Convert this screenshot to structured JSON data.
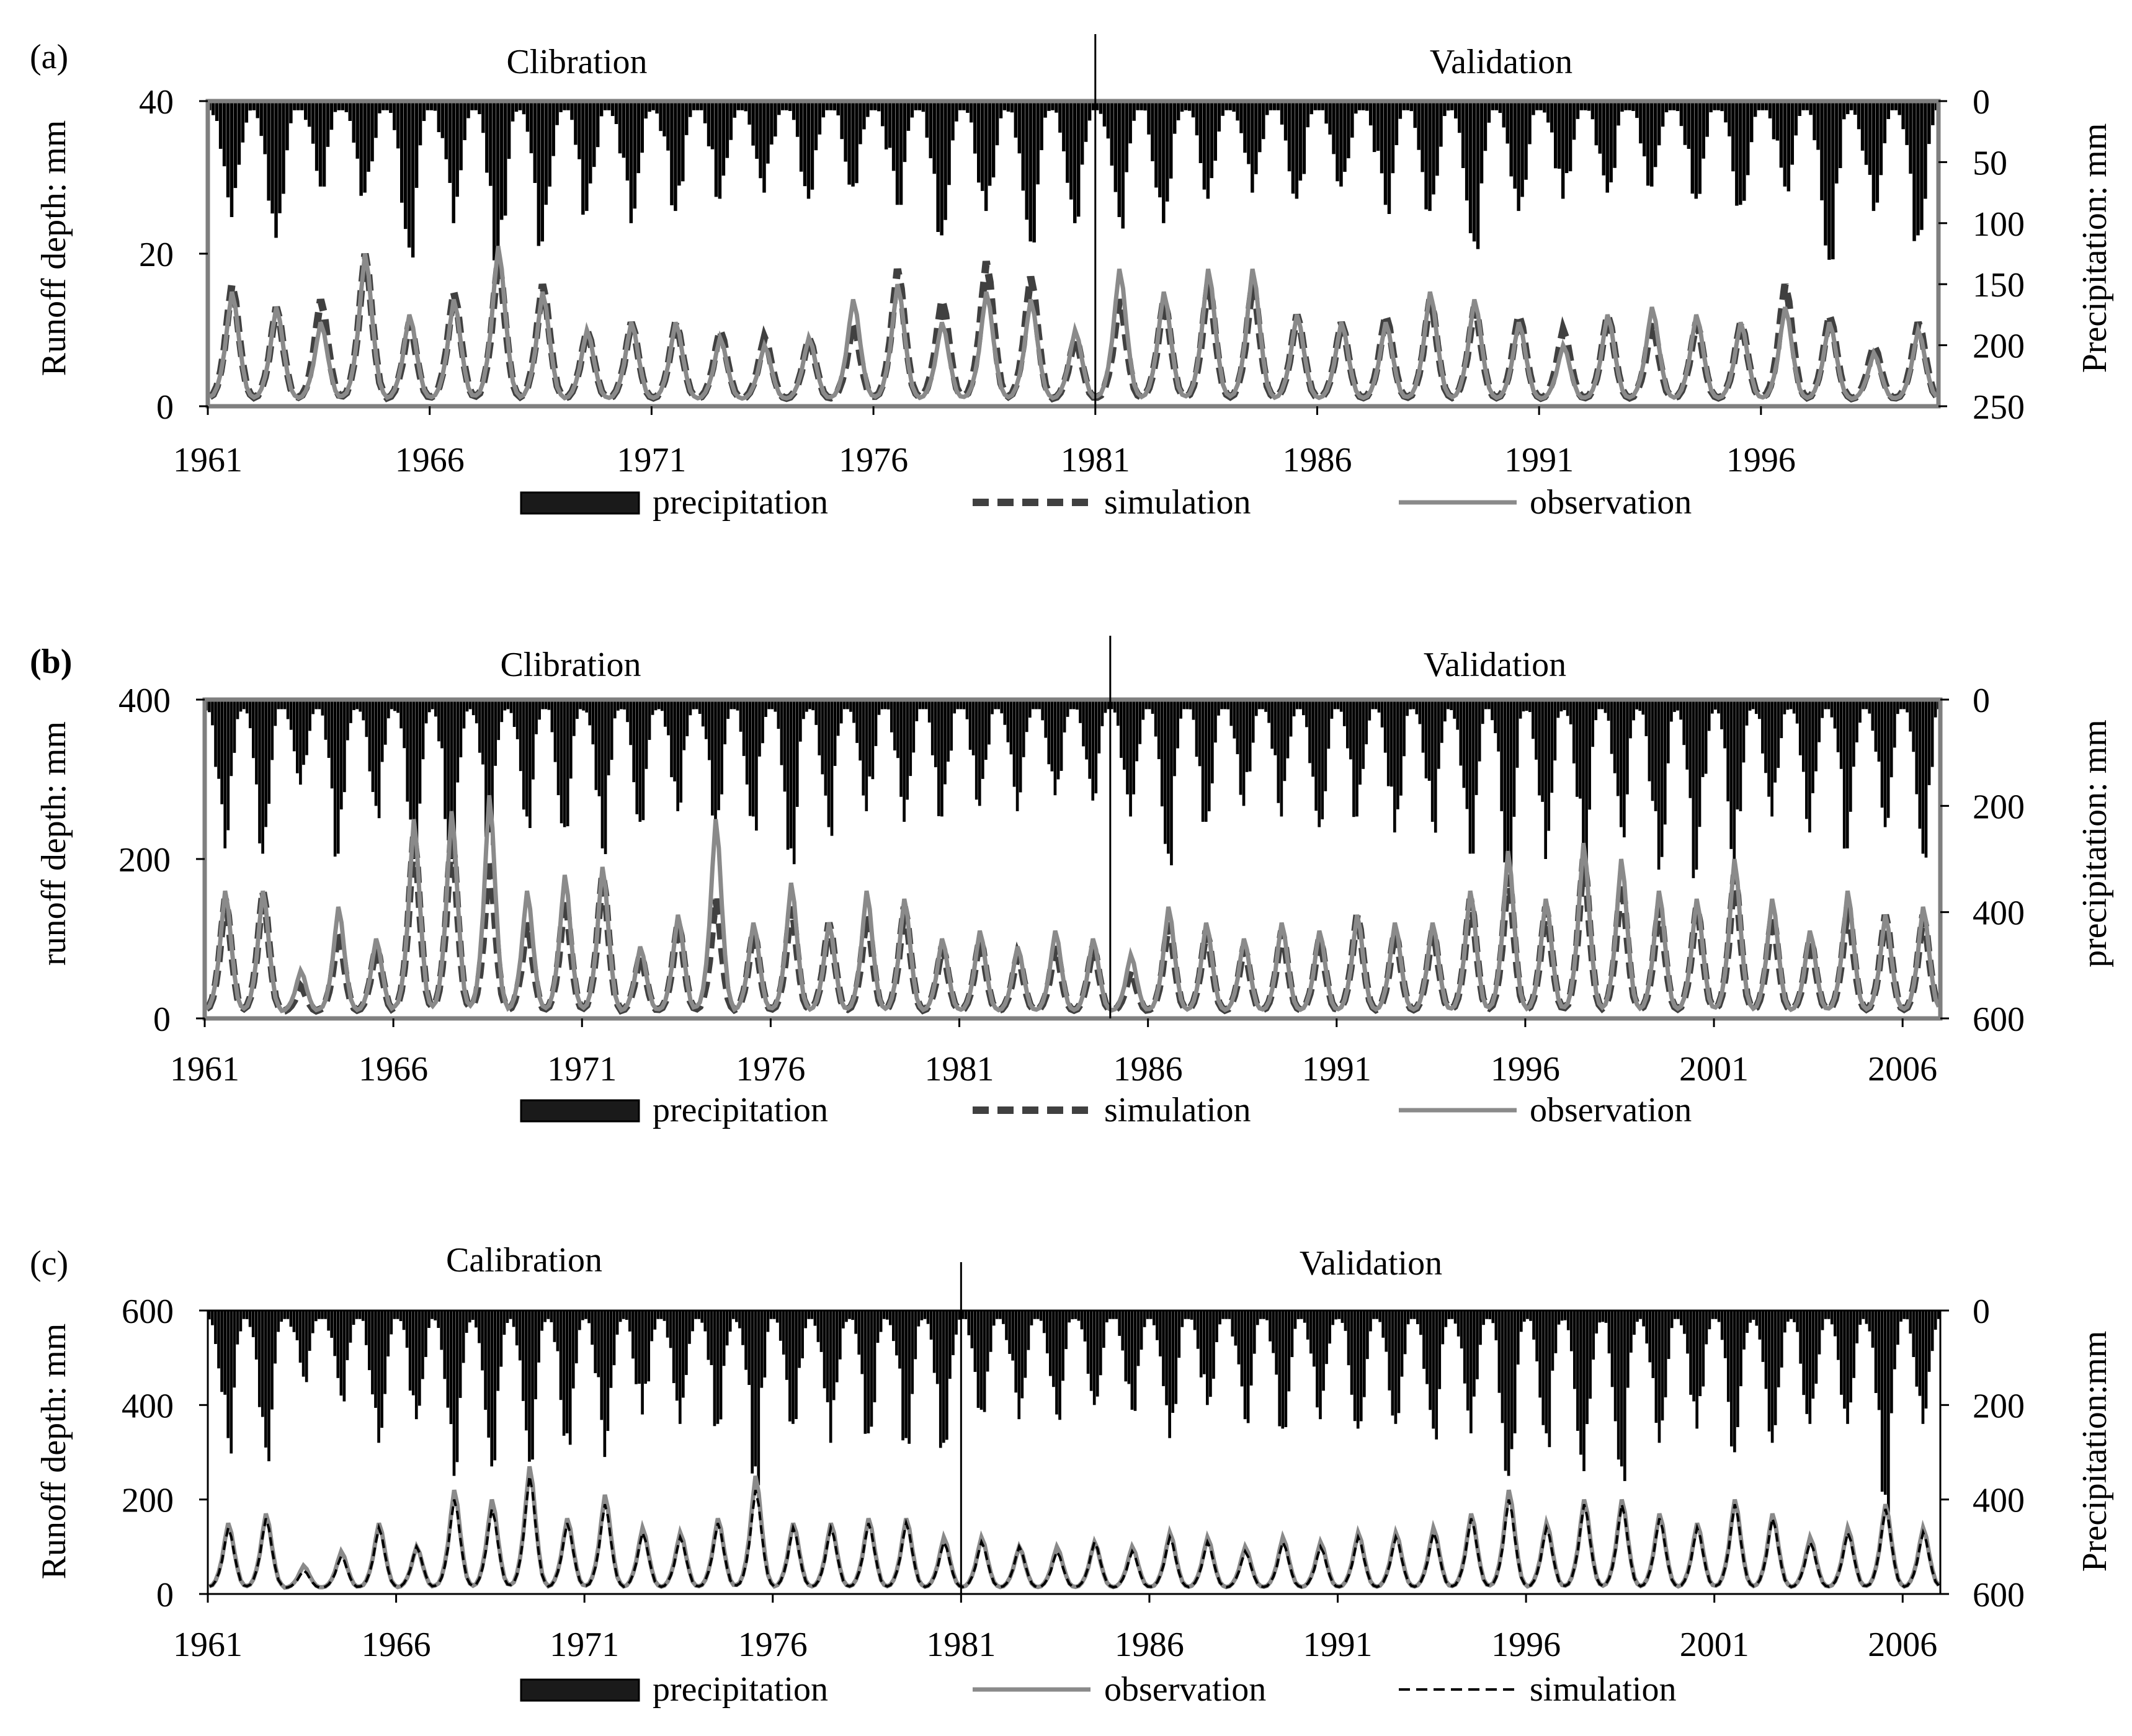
{
  "chart_data": [
    {
      "type": "line",
      "panel_label": "(a)",
      "period_labels": [
        "Clibration",
        "Validation"
      ],
      "split_year": 1981,
      "ylabel": "Runoff depth: mm",
      "y2label": "Precipitation: mm",
      "ylim": [
        0,
        40
      ],
      "y2lim": [
        250,
        0
      ],
      "y_ticks": [
        "0",
        "20",
        "40"
      ],
      "y2_ticks": [
        "0",
        "50",
        "100",
        "150",
        "200",
        "250"
      ],
      "xlim": [
        1961,
        2000
      ],
      "x_ticks": [
        "1961",
        "1966",
        "1971",
        "1976",
        "1981",
        "1986",
        "1991",
        "1996"
      ],
      "legend": [
        "precipitation",
        "simulation",
        "observation"
      ],
      "series": [
        {
          "name": "precipitation",
          "type": "bar",
          "axis": "right",
          "annual_peaks_mm": [
            95,
            112,
            70,
            75,
            120,
            100,
            140,
            115,
            90,
            100,
            90,
            80,
            75,
            80,
            70,
            85,
            110,
            90,
            115,
            100,
            95,
            100,
            80,
            75,
            80,
            70,
            85,
            90,
            115,
            90,
            80,
            75,
            70,
            80,
            85,
            70,
            130,
            90,
            110
          ]
        },
        {
          "name": "simulation",
          "type": "line",
          "annual_peaks": [
            16,
            13,
            14,
            20,
            11,
            15,
            19,
            16,
            10,
            11,
            11,
            10,
            9,
            9,
            11,
            18,
            14,
            19,
            17,
            9,
            14,
            14,
            16,
            16,
            12,
            11,
            12,
            14,
            13,
            12,
            10,
            12,
            11,
            11,
            11,
            16,
            12,
            8,
            11
          ]
        },
        {
          "name": "observation",
          "type": "line",
          "annual_peaks": [
            15,
            13,
            11,
            20,
            12,
            14,
            21,
            15,
            10,
            11,
            11,
            9,
            8,
            9,
            14,
            16,
            11,
            15,
            14,
            10,
            18,
            15,
            18,
            18,
            12,
            11,
            11,
            15,
            14,
            11,
            8,
            12,
            13,
            12,
            11,
            13,
            11,
            7,
            10
          ]
        }
      ]
    },
    {
      "type": "line",
      "panel_label": "(b)",
      "period_labels": [
        "Clibration",
        "Validation"
      ],
      "split_year": 1985,
      "ylabel": "runoff depth: mm",
      "y2label": "precipitation: mm",
      "ylim": [
        0,
        400
      ],
      "y2lim": [
        600,
        0
      ],
      "y_ticks": [
        "0",
        "200",
        "400"
      ],
      "y2_ticks": [
        "0",
        "200",
        "400",
        "600"
      ],
      "xlim": [
        1961,
        2007
      ],
      "x_ticks": [
        "1961",
        "1966",
        "1971",
        "1976",
        "1981",
        "1986",
        "1991",
        "1996",
        "2001",
        "2006"
      ],
      "legend": [
        "precipitation",
        "simulation",
        "observation"
      ],
      "series": [
        {
          "name": "precipitation",
          "type": "bar",
          "axis": "right",
          "annual_peaks_mm": [
            280,
            290,
            160,
            290,
            200,
            300,
            300,
            250,
            220,
            240,
            280,
            230,
            210,
            240,
            220,
            280,
            240,
            210,
            230,
            220,
            200,
            210,
            180,
            190,
            220,
            290,
            230,
            200,
            220,
            240,
            220,
            250,
            230,
            290,
            310,
            300,
            280,
            240,
            320,
            320,
            300,
            220,
            250,
            280,
            240,
            290
          ]
        },
        {
          "name": "simulation",
          "type": "line",
          "annual_peaks": [
            150,
            160,
            40,
            110,
            90,
            230,
            230,
            200,
            120,
            150,
            180,
            80,
            120,
            150,
            110,
            140,
            120,
            130,
            140,
            90,
            100,
            80,
            90,
            90,
            60,
            120,
            110,
            90,
            110,
            100,
            130,
            110,
            110,
            150,
            180,
            140,
            200,
            170,
            140,
            140,
            180,
            130,
            100,
            140,
            130,
            130
          ]
        },
        {
          "name": "observation",
          "type": "line",
          "annual_peaks": [
            160,
            160,
            60,
            140,
            100,
            250,
            260,
            280,
            160,
            180,
            190,
            90,
            130,
            250,
            120,
            170,
            120,
            160,
            150,
            100,
            110,
            90,
            110,
            100,
            80,
            140,
            120,
            100,
            120,
            110,
            130,
            120,
            120,
            160,
            210,
            150,
            220,
            200,
            160,
            150,
            200,
            150,
            110,
            160,
            130,
            140
          ]
        }
      ]
    },
    {
      "type": "line",
      "panel_label": "(c)",
      "period_labels": [
        "Calibration",
        "Validation"
      ],
      "split_year": 1981,
      "ylabel": "Runoff depth: mm",
      "y2label": "Precipitation:mm",
      "ylim": [
        0,
        600
      ],
      "y2lim": [
        600,
        0
      ],
      "y_ticks": [
        "0",
        "200",
        "400",
        "600"
      ],
      "y2_ticks": [
        "0",
        "200",
        "400",
        "600"
      ],
      "xlim": [
        1961,
        2007
      ],
      "x_ticks": [
        "1961",
        "1966",
        "1971",
        "1976",
        "1981",
        "1986",
        "1991",
        "1996",
        "2001",
        "2006"
      ],
      "legend": [
        "precipitation",
        "observation",
        "simulation"
      ],
      "series": [
        {
          "name": "precipitation",
          "type": "bar",
          "axis": "right",
          "annual_peaks_mm": [
            270,
            290,
            140,
            180,
            280,
            230,
            350,
            330,
            320,
            260,
            310,
            220,
            240,
            240,
            330,
            240,
            280,
            260,
            270,
            280,
            210,
            230,
            220,
            200,
            210,
            270,
            200,
            230,
            250,
            230,
            250,
            240,
            250,
            260,
            350,
            260,
            340,
            330,
            280,
            250,
            300,
            280,
            240,
            240,
            390,
            240
          ]
        },
        {
          "name": "observation",
          "type": "line",
          "annual_peaks": [
            150,
            170,
            60,
            90,
            150,
            100,
            220,
            200,
            270,
            160,
            210,
            140,
            130,
            160,
            250,
            150,
            150,
            160,
            160,
            120,
            120,
            100,
            100,
            110,
            100,
            130,
            120,
            100,
            120,
            110,
            130,
            130,
            140,
            170,
            220,
            150,
            200,
            200,
            170,
            150,
            200,
            170,
            120,
            140,
            190,
            140
          ]
        },
        {
          "name": "simulation",
          "type": "line",
          "annual_peaks": [
            140,
            160,
            50,
            80,
            140,
            100,
            200,
            180,
            250,
            150,
            190,
            130,
            120,
            150,
            220,
            140,
            140,
            150,
            150,
            110,
            110,
            100,
            90,
            110,
            90,
            120,
            110,
            90,
            110,
            100,
            120,
            120,
            130,
            160,
            200,
            140,
            190,
            190,
            160,
            140,
            190,
            160,
            110,
            130,
            180,
            130
          ]
        }
      ]
    }
  ]
}
